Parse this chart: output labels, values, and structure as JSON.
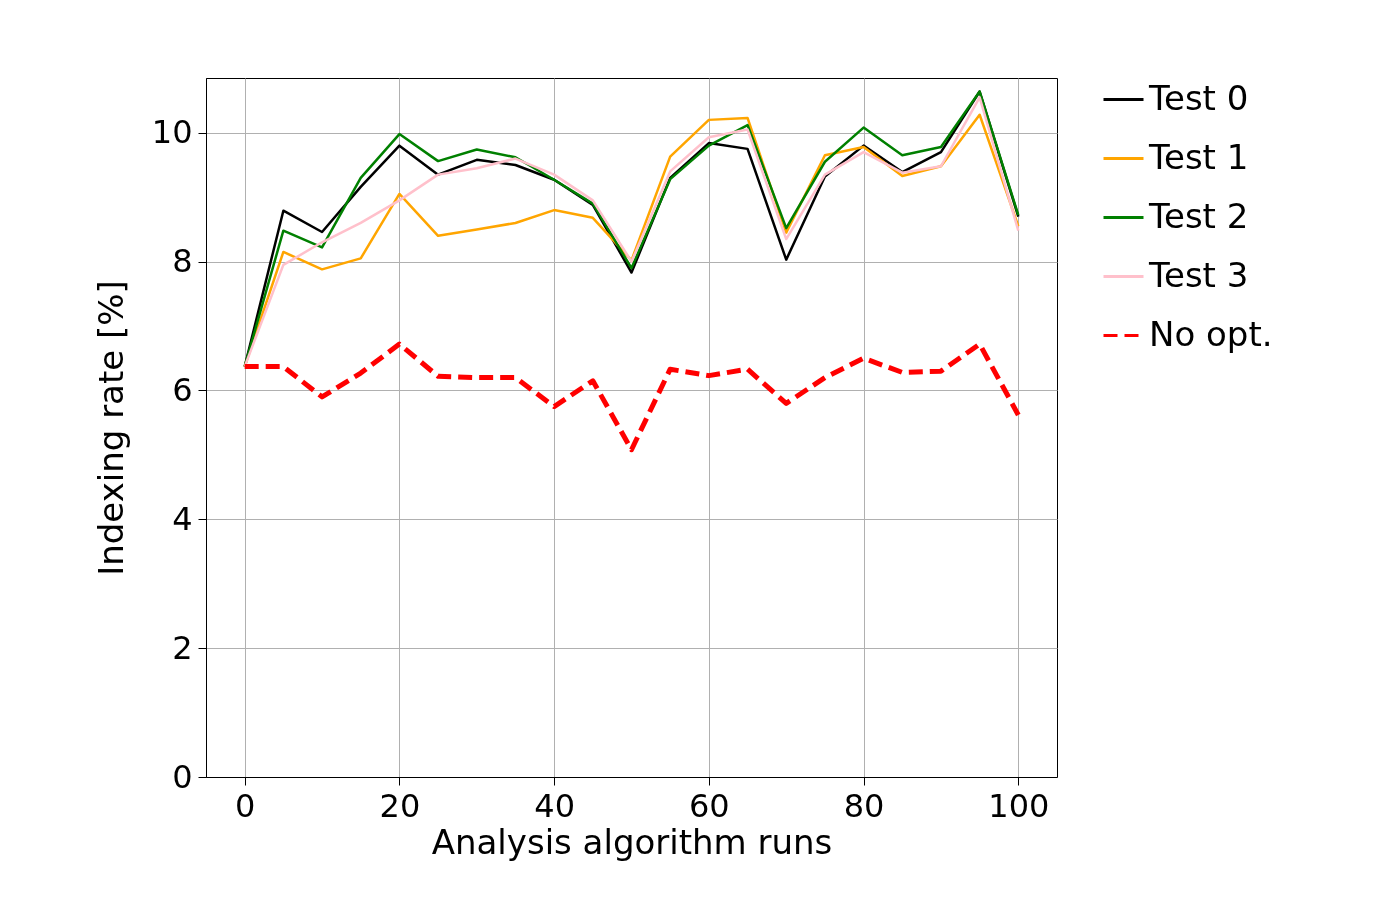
{
  "chart_data": {
    "type": "line",
    "xlabel": "Analysis algorithm runs",
    "ylabel": "Indexing rate [%]",
    "x": [
      0,
      5,
      10,
      15,
      20,
      25,
      30,
      35,
      40,
      45,
      50,
      55,
      60,
      65,
      70,
      75,
      80,
      85,
      90,
      95,
      100
    ],
    "series": [
      {
        "name": "Test 0",
        "color": "#000000",
        "line_style": "solid",
        "values": [
          6.37,
          8.79,
          8.46,
          9.16,
          9.8,
          9.35,
          9.58,
          9.5,
          9.27,
          8.88,
          7.83,
          9.3,
          9.84,
          9.75,
          8.03,
          9.32,
          9.8,
          9.39,
          9.7,
          10.64,
          8.7
        ]
      },
      {
        "name": "Test 1",
        "color": "#ffa500",
        "line_style": "solid",
        "values": [
          6.37,
          8.15,
          7.88,
          8.05,
          9.05,
          8.4,
          8.5,
          8.6,
          8.8,
          8.68,
          8.02,
          9.63,
          10.2,
          10.23,
          8.45,
          9.65,
          9.78,
          9.33,
          9.48,
          10.28,
          8.55
        ]
      },
      {
        "name": "Test 2",
        "color": "#008000",
        "line_style": "solid",
        "values": [
          6.37,
          8.48,
          8.22,
          9.3,
          9.98,
          9.56,
          9.74,
          9.62,
          9.27,
          8.9,
          7.9,
          9.28,
          9.8,
          10.12,
          8.52,
          9.55,
          10.08,
          9.65,
          9.78,
          10.64,
          8.72
        ]
      },
      {
        "name": "Test 3",
        "color": "#ffc0cb",
        "line_style": "solid",
        "values": [
          6.37,
          7.95,
          8.3,
          8.6,
          8.95,
          9.35,
          9.45,
          9.6,
          9.35,
          8.95,
          8.0,
          9.4,
          9.93,
          10.05,
          8.35,
          9.35,
          9.7,
          9.38,
          9.48,
          10.55,
          8.48
        ]
      },
      {
        "name": "No opt.",
        "color": "#ff0000",
        "line_style": "dashed",
        "values": [
          6.37,
          6.37,
          5.9,
          6.27,
          6.72,
          6.22,
          6.2,
          6.2,
          5.75,
          6.15,
          5.08,
          6.33,
          6.23,
          6.33,
          5.8,
          6.2,
          6.5,
          6.28,
          6.3,
          6.72,
          5.62
        ]
      }
    ],
    "xlim": [
      -5,
      105
    ],
    "ylim": [
      0,
      10.85
    ],
    "xticks": [
      0,
      20,
      40,
      60,
      80,
      100
    ],
    "yticks": [
      0,
      2,
      4,
      6,
      8,
      10
    ],
    "grid": true,
    "legend": "top right",
    "marker": "none"
  }
}
